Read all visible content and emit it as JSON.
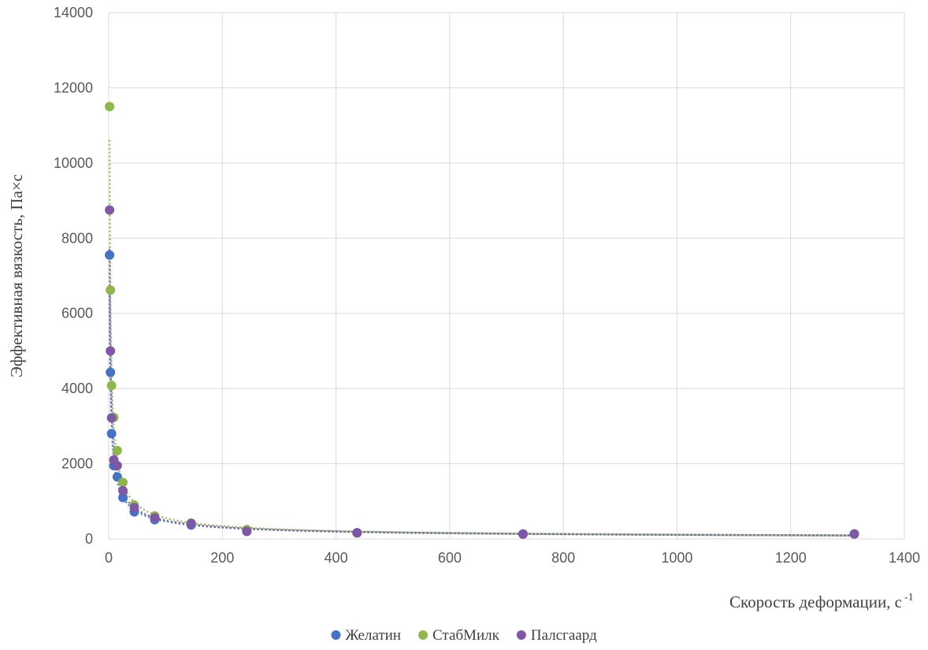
{
  "chart_data": {
    "type": "scatter",
    "title": "",
    "xlabel": "Скорость деформации, с",
    "xlabel_superscript": "-1",
    "ylabel": "Эффективная вязкость, Па×с",
    "xlim": [
      0,
      1400
    ],
    "ylim": [
      0,
      14000
    ],
    "x_ticks": [
      0,
      200,
      400,
      600,
      800,
      1000,
      1200,
      1400
    ],
    "y_ticks": [
      0,
      2000,
      4000,
      6000,
      8000,
      10000,
      12000,
      14000
    ],
    "grid": true,
    "legend_position": "bottom",
    "trendlines": "dotted power-law fit per series",
    "series": [
      {
        "name": "Желатин",
        "color": "#4472C4",
        "x": [
          1.5,
          3,
          5,
          9,
          15,
          25,
          45,
          81,
          145,
          243,
          437,
          729,
          1312
        ],
        "y": [
          7550,
          4430,
          2800,
          1950,
          1650,
          1100,
          720,
          510,
          370,
          240,
          165,
          125,
          130
        ]
      },
      {
        "name": "СтабМилк",
        "color": "#8DB849",
        "x": [
          1.5,
          3,
          5,
          9,
          15,
          25,
          45,
          81,
          145,
          243,
          437,
          729,
          1312
        ],
        "y": [
          11500,
          6620,
          4080,
          3230,
          2350,
          1500,
          900,
          610,
          420,
          250,
          165,
          130,
          130
        ]
      },
      {
        "name": "Палсгаард",
        "color": "#7E58A6",
        "x": [
          1.5,
          3,
          5,
          9,
          15,
          25,
          45,
          81,
          145,
          243,
          437,
          729,
          1312
        ],
        "y": [
          8750,
          5000,
          3220,
          2100,
          1950,
          1280,
          830,
          560,
          410,
          200,
          160,
          130,
          130
        ]
      }
    ]
  }
}
